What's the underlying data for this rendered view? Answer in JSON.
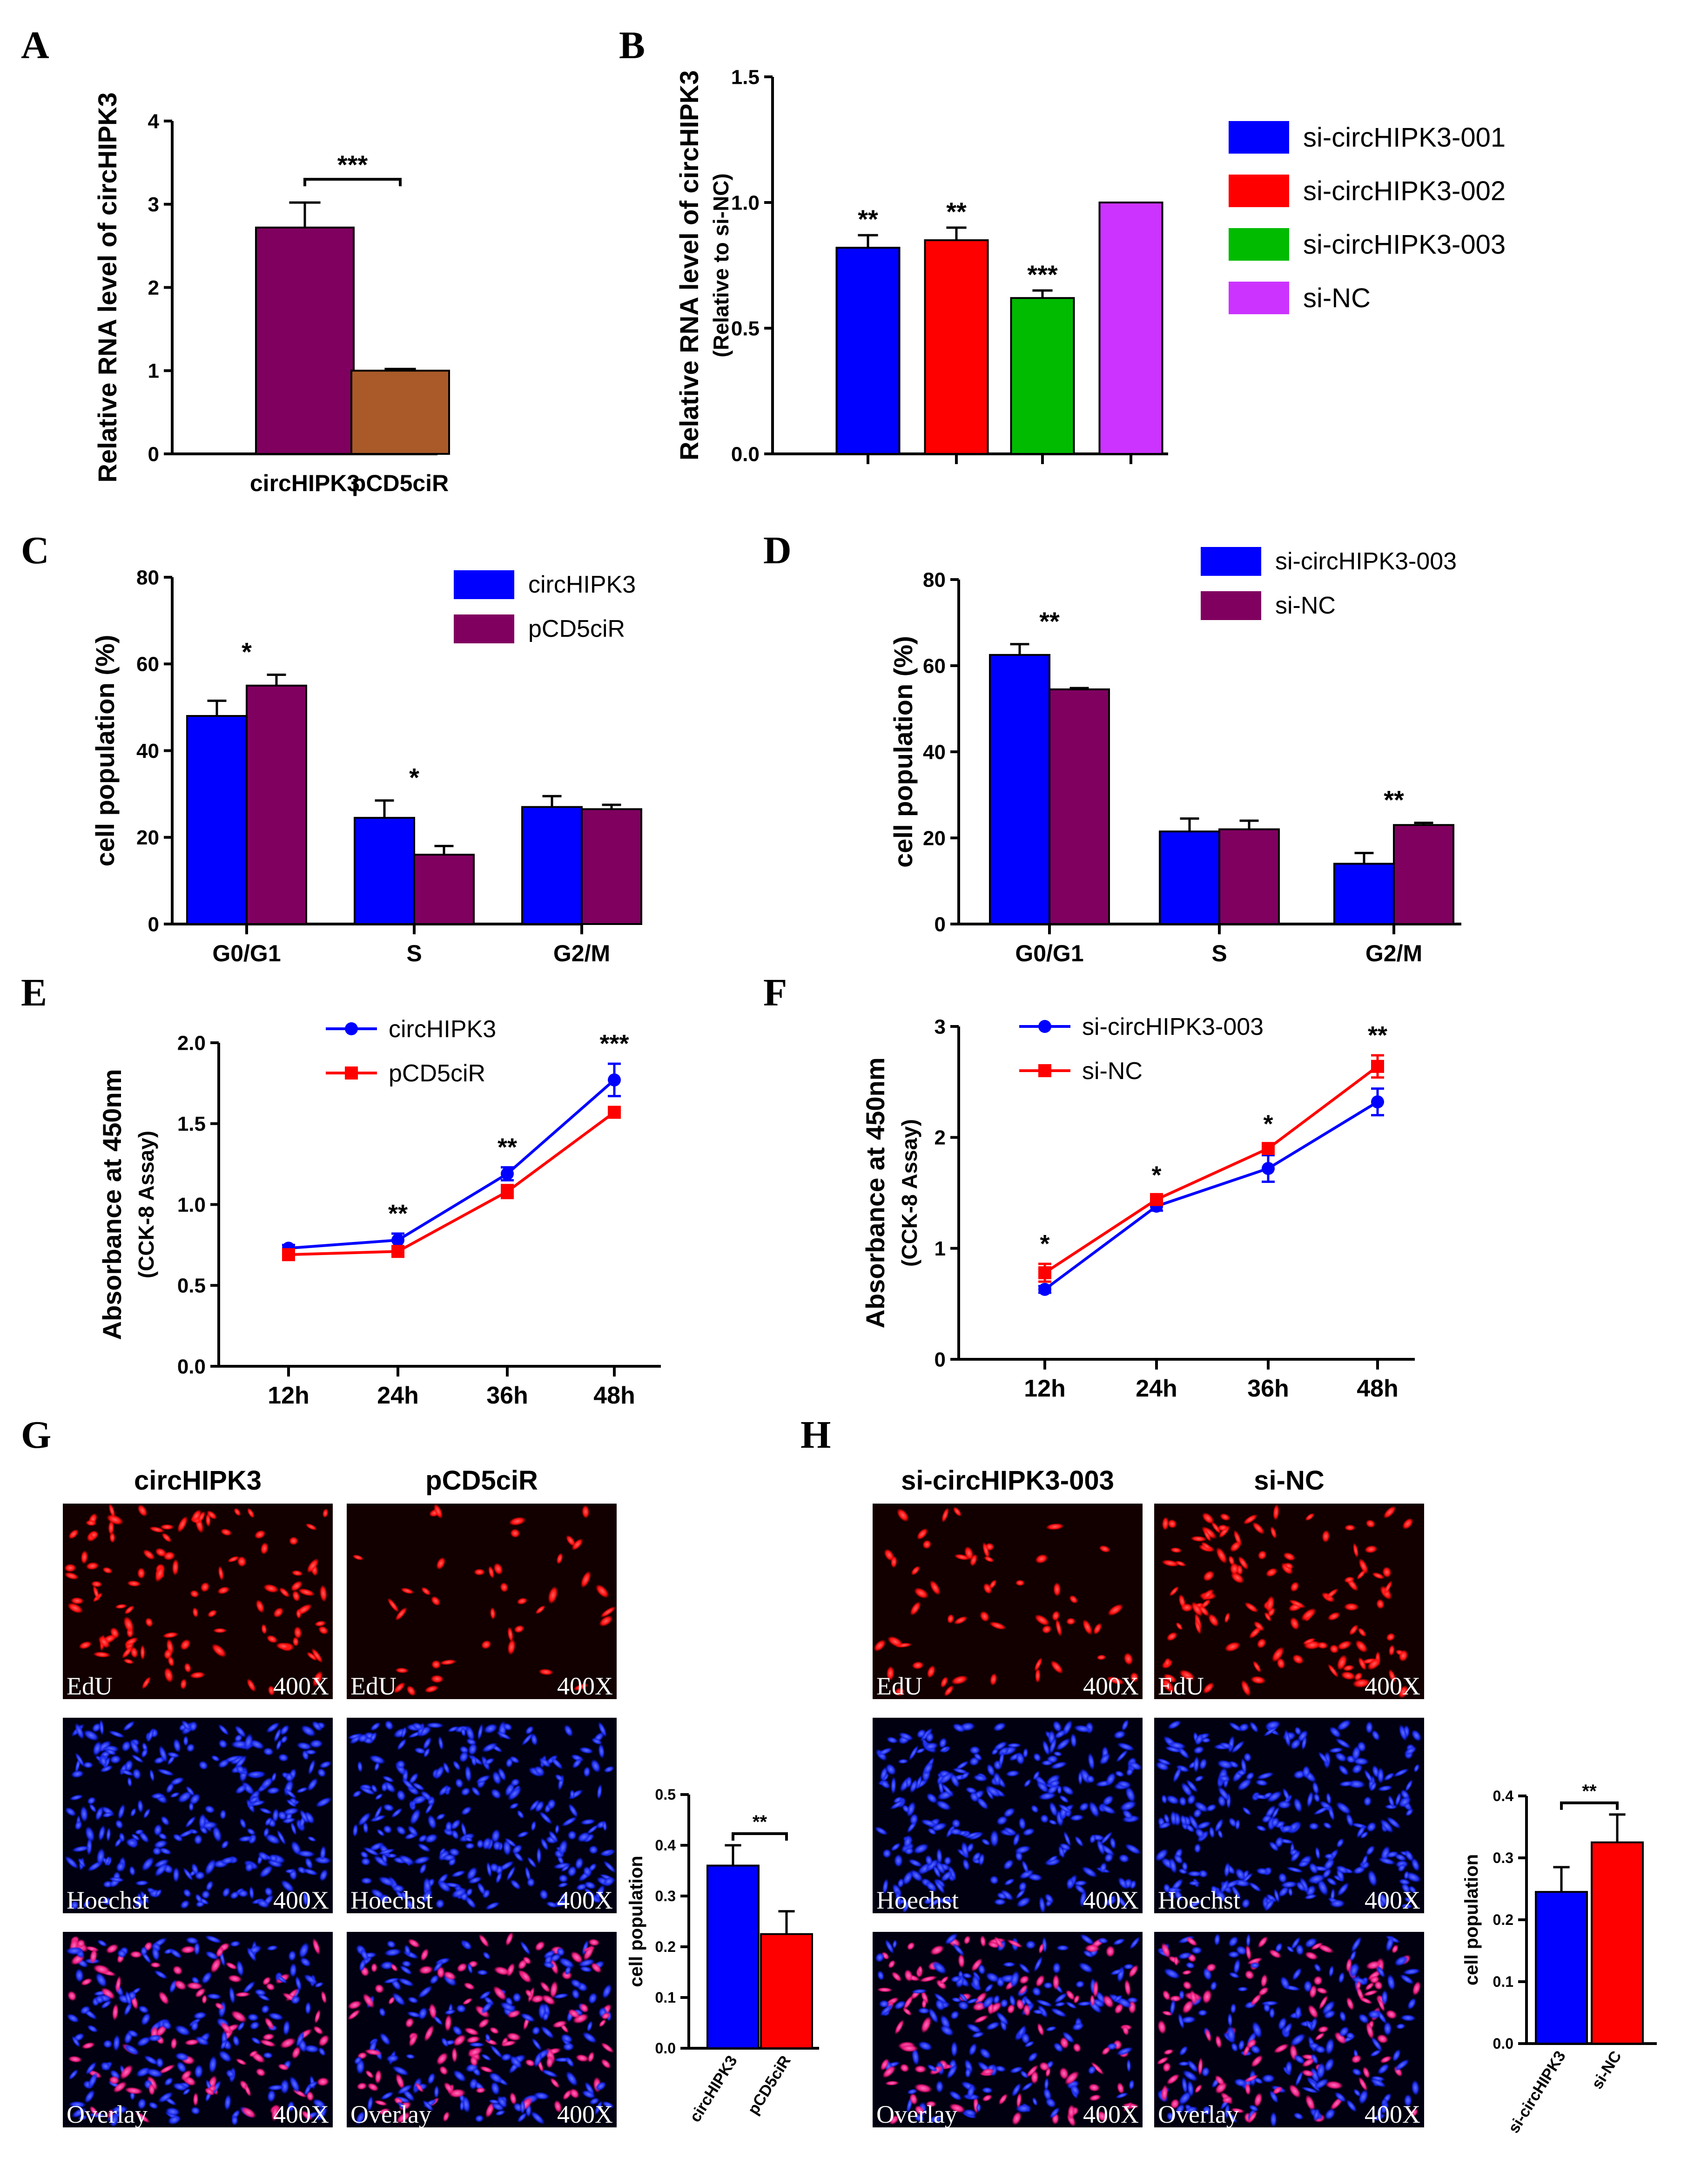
{
  "colors": {
    "blue": "#0000ff",
    "red": "#ff0000",
    "green": "#00bb00",
    "magenta": "#cc33ff",
    "purple": "#800060",
    "brown": "#aa5a28",
    "blue_nuclei": "#2a3fff",
    "red_nuclei": "#ff2020"
  },
  "panels": {
    "A": "A",
    "B": "B",
    "C": "C",
    "D": "D",
    "E": "E",
    "F": "F",
    "G": "G",
    "H": "H"
  },
  "chart_data": [
    {
      "panel": "A",
      "type": "bar",
      "categories": [
        "circHIPK3",
        "pCD5ciR"
      ],
      "values": [
        2.72,
        1.0
      ],
      "errors": [
        0.3,
        0.02
      ],
      "ylabel": "Relative RNA level of circHIPK3",
      "ylim": [
        0,
        4
      ],
      "yticks": [
        "0",
        "1",
        "2",
        "3",
        "4"
      ],
      "colors": [
        "purple",
        "brown"
      ],
      "annotations": [
        "***"
      ]
    },
    {
      "panel": "B",
      "type": "bar",
      "categories": [
        "si-circHIPK3-001",
        "si-circHIPK3-002",
        "si-circHIPK3-003",
        "si-NC"
      ],
      "values": [
        0.82,
        0.85,
        0.62,
        1.0
      ],
      "errors": [
        0.05,
        0.05,
        0.03,
        0.0
      ],
      "ylabel": "Relative RNA level of circHIPK3",
      "ylabel2": "(Relative to si-NC)",
      "ylim": [
        0,
        1.5
      ],
      "yticks": [
        "0.0",
        "0.5",
        "1.0",
        "1.5"
      ],
      "colors": [
        "blue",
        "red",
        "green",
        "magenta"
      ],
      "stars": [
        "**",
        "**",
        "***",
        ""
      ],
      "legend": [
        "si-circHIPK3-001",
        "si-circHIPK3-002",
        "si-circHIPK3-003",
        "si-NC"
      ]
    },
    {
      "panel": "C",
      "type": "bar",
      "categories": [
        "G0/G1",
        "S",
        "G2/M"
      ],
      "series": [
        {
          "name": "circHIPK3",
          "values": [
            48,
            24.5,
            27
          ],
          "errors": [
            3.5,
            4,
            2.5
          ]
        },
        {
          "name": "pCD5ciR",
          "values": [
            55,
            16,
            26.5
          ],
          "errors": [
            2.5,
            2,
            1
          ]
        }
      ],
      "ylabel": "cell population (%)",
      "ylim": [
        0,
        80
      ],
      "yticks": [
        "0",
        "20",
        "40",
        "60",
        "80"
      ],
      "colors": [
        "blue",
        "purple"
      ],
      "stars": [
        "*",
        "*",
        ""
      ]
    },
    {
      "panel": "D",
      "type": "bar",
      "categories": [
        "G0/G1",
        "S",
        "G2/M"
      ],
      "series": [
        {
          "name": "si-circHIPK3-003",
          "values": [
            62.5,
            21.5,
            14
          ],
          "errors": [
            2.5,
            3,
            2.5
          ]
        },
        {
          "name": "si-NC",
          "values": [
            54.5,
            22,
            23
          ],
          "errors": [
            0.3,
            2,
            0.5
          ]
        }
      ],
      "ylabel": "cell population (%)",
      "ylim": [
        0,
        80
      ],
      "yticks": [
        "0",
        "20",
        "40",
        "60",
        "80"
      ],
      "colors": [
        "blue",
        "purple"
      ],
      "stars": [
        "**",
        "",
        "**"
      ]
    },
    {
      "panel": "E",
      "type": "line",
      "x": [
        "12h",
        "24h",
        "36h",
        "48h"
      ],
      "series": [
        {
          "name": "circHIPK3",
          "values": [
            0.73,
            0.78,
            1.19,
            1.77
          ],
          "errors": [
            0.02,
            0.04,
            0.04,
            0.1
          ]
        },
        {
          "name": "pCD5ciR",
          "values": [
            0.69,
            0.71,
            1.08,
            1.57
          ],
          "errors": [
            0.02,
            0.03,
            0.04,
            0.03
          ]
        }
      ],
      "ylabel": "Absorbance at 450nm",
      "ylabel2": "(CCK-8 Assay)",
      "ylim": [
        0,
        2
      ],
      "yticks": [
        "0.0",
        "0.5",
        "1.0",
        "1.5",
        "2.0"
      ],
      "colors": [
        "blue",
        "red"
      ],
      "stars": [
        "",
        "**",
        "**",
        "***"
      ]
    },
    {
      "panel": "F",
      "type": "line",
      "x": [
        "12h",
        "24h",
        "36h",
        "48h"
      ],
      "series": [
        {
          "name": "si-circHIPK3-003",
          "values": [
            0.63,
            1.38,
            1.72,
            2.32
          ],
          "errors": [
            0.03,
            0.04,
            0.12,
            0.12
          ]
        },
        {
          "name": "si-NC",
          "values": [
            0.78,
            1.44,
            1.9,
            2.64
          ],
          "errors": [
            0.08,
            0.04,
            0.04,
            0.1
          ]
        }
      ],
      "ylabel": "Absorbance at 450nm",
      "ylabel2": "(CCK-8 Assay)",
      "ylim": [
        0,
        3
      ],
      "yticks": [
        "0",
        "1",
        "2",
        "3"
      ],
      "colors": [
        "blue",
        "red"
      ],
      "stars": [
        "*",
        "*",
        "*",
        "**"
      ]
    },
    {
      "panel": "G",
      "type": "bar",
      "categories": [
        "circHIPK3",
        "pCD5ciR"
      ],
      "values": [
        0.36,
        0.225
      ],
      "errors": [
        0.04,
        0.045
      ],
      "ylabel": "cell population",
      "ylim": [
        0,
        0.5
      ],
      "yticks": [
        "0.0",
        "0.1",
        "0.2",
        "0.3",
        "0.4",
        "0.5"
      ],
      "colors": [
        "blue",
        "red"
      ],
      "annotations": [
        "**"
      ]
    },
    {
      "panel": "H",
      "type": "bar",
      "categories": [
        "si-circHIPK3",
        "si-NC"
      ],
      "values": [
        0.245,
        0.325
      ],
      "errors": [
        0.04,
        0.045
      ],
      "ylabel": "cell population",
      "ylim": [
        0,
        0.4
      ],
      "yticks": [
        "0.0",
        "0.1",
        "0.2",
        "0.3",
        "0.4"
      ],
      "colors": [
        "blue",
        "red"
      ],
      "annotations": [
        "**"
      ]
    }
  ],
  "micrographs": {
    "G": {
      "col_titles": [
        "circHIPK3",
        "pCD5ciR"
      ],
      "rows": [
        "EdU",
        "Hoechst",
        "Overlay"
      ],
      "magnification": "400X"
    },
    "H": {
      "col_titles": [
        "si-circHIPK3-003",
        "si-NC"
      ],
      "rows": [
        "EdU",
        "Hoechst",
        "Overlay"
      ],
      "magnification": "400X"
    }
  }
}
